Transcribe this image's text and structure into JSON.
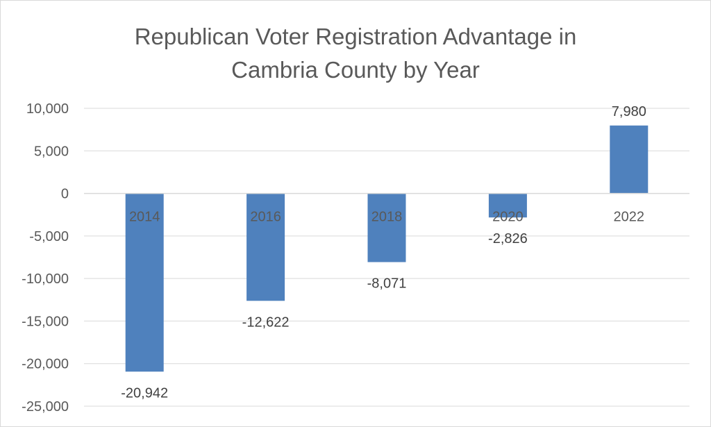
{
  "chart_data": {
    "type": "bar",
    "title_lines": [
      "Republican Voter Registration Advantage in",
      "Cambria County by Year"
    ],
    "title": "Republican Voter Registration Advantage in Cambria County by Year",
    "xlabel": "",
    "ylabel": "",
    "categories": [
      "2014",
      "2016",
      "2018",
      "2020",
      "2022"
    ],
    "values": [
      -20942,
      -12622,
      -8071,
      -2826,
      7980
    ],
    "data_labels": [
      "-20,942",
      "-12,622",
      "-8,071",
      "-2,826",
      "7,980"
    ],
    "ylim": [
      -25000,
      10000
    ],
    "y_ticks": [
      10000,
      5000,
      0,
      -5000,
      -10000,
      -15000,
      -20000,
      -25000
    ],
    "y_tick_labels": [
      "10,000",
      "5,000",
      "0",
      "-5,000",
      "-10,000",
      "-15,000",
      "-20,000",
      "-25,000"
    ],
    "grid": true,
    "legend": "none",
    "bar_color": "#4f81bd",
    "grid_color": "#d9d9d9",
    "text_color": "#595959"
  }
}
